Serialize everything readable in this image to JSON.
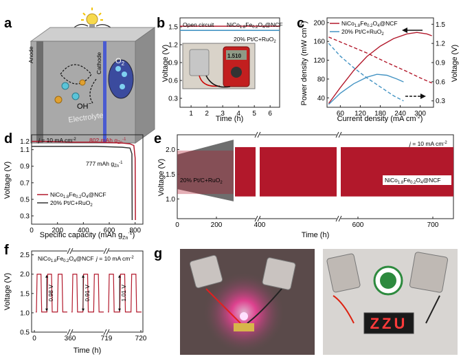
{
  "panels": {
    "a": {
      "letter": "a",
      "labels": {
        "anode": "Anode",
        "cathode": "Cathode",
        "electrolyte": "Electrolyte",
        "hydroxide": "OH",
        "hydroxide_sup": "−",
        "oxygen": "O",
        "oxygen_sub": "2"
      }
    },
    "b": {
      "letter": "b",
      "label_open": "Open circuit",
      "label_ncf": "NiCo",
      "label_ncf_1": "1.8",
      "label_ncf_mid": "Fe",
      "label_ncf_2": "0.2",
      "label_ncf_end": "O",
      "label_ncf_3": "4",
      "label_ncf_tail": "@NCF",
      "label_pt": "20% Pt/C+RuO",
      "label_pt_sub": "2",
      "meter_display": "1.510",
      "ylabel": "Voltage (V)",
      "xlabel": "Time (h)",
      "yticks": [
        "1.5",
        "1.2",
        "0.9",
        "0.6",
        "0.3"
      ],
      "xticks": [
        "1",
        "2",
        "3",
        "4",
        "5",
        "6"
      ]
    },
    "c": {
      "letter": "c",
      "legend_ncf": "NiCo",
      "legend_ncf_1": "1.8",
      "legend_ncf_mid": "Fe",
      "legend_ncf_2": "0.2",
      "legend_ncf_end": "O",
      "legend_ncf_3": "4",
      "legend_ncf_tail": "@NCF",
      "legend_pt": "20% Pt/C+RuO",
      "legend_pt_sub": "2",
      "ylabel_left": "Power density (mW cm",
      "ylabel_left_sup": "-2",
      "ylabel_left_end": ")",
      "ylabel_right": "Voltage (V)",
      "xlabel": "Current density (mA cm",
      "xlabel_sup": "-2",
      "xlabel_end": ")",
      "yticks_left": [
        "200",
        "160",
        "120",
        "80",
        "40"
      ],
      "yticks_right": [
        "1.5",
        "1.2",
        "0.9",
        "0.6",
        "0.3"
      ],
      "xticks": [
        "60",
        "120",
        "180",
        "240",
        "300"
      ]
    },
    "d": {
      "letter": "d",
      "cond": "j",
      "cond_rest": " = 10 mA cm",
      "cond_sup": "-2",
      "cap_ncf": "802 mAh g",
      "cap_ncf_sub": "Zn",
      "cap_ncf_sup": "-1",
      "cap_pt": "777 mAh g",
      "cap_pt_sub": "Zn",
      "cap_pt_sup": "-1",
      "legend_ncf": "NiCo",
      "legend_ncf_1": "1.8",
      "legend_ncf_mid": "Fe",
      "legend_ncf_2": "0.2",
      "legend_ncf_end": "O",
      "legend_ncf_3": "4",
      "legend_ncf_tail": "@NCF",
      "legend_pt": "20% Pt/C+RuO",
      "legend_pt_sub": "2",
      "ylabel": "Voltage (V)",
      "xlabel": "Specific capacity (mAh g",
      "xlabel_sub": "Zn",
      "xlabel_sup": "-1",
      "xlabel_end": ")",
      "yticks": [
        "1.2",
        "1.1",
        "0.9",
        "0.7",
        "0.5",
        "0.3"
      ],
      "xticks": [
        "0",
        "200",
        "400",
        "600",
        "800"
      ]
    },
    "e": {
      "letter": "e",
      "cond": "j",
      "cond_rest": " = 10 mA cm",
      "cond_sup": "-2",
      "label_pt": "20% Pt/C+RuO",
      "label_pt_sub": "2",
      "label_ncf": "NiCo",
      "label_ncf_1": "1.8",
      "label_ncf_mid": "Fe",
      "label_ncf_2": "0.2",
      "label_ncf_end": "O",
      "label_ncf_3": "4",
      "label_ncf_tail": "@NCF",
      "ylabel": "Voltage (V)",
      "xlabel": "Time (h)",
      "yticks": [
        "2.0",
        "1.5",
        "1.0"
      ],
      "xticks": [
        "0",
        "200",
        "400",
        "600",
        "700"
      ]
    },
    "f": {
      "letter": "f",
      "label_ncf": "NiCo",
      "label_ncf_1": "1.8",
      "label_ncf_mid": "Fe",
      "label_ncf_2": "0.2",
      "label_ncf_end": "O",
      "label_ncf_3": "4",
      "label_ncf_tail": "@NCF",
      "cond": "j",
      "cond_rest": " = 10 mA cm",
      "cond_sup": "-2",
      "gap1": "0.98 V",
      "gap2": "0.91 V",
      "gap3": "1.01 V",
      "ylabel": "Voltage (V)",
      "xlabel": "Time (h)",
      "yticks": [
        "2.5",
        "2.0",
        "1.5",
        "1.0",
        "0.5"
      ],
      "xticks": [
        "0",
        "360",
        "719",
        "720"
      ]
    },
    "g": {
      "letter": "g",
      "display_text": "ZZU"
    }
  },
  "chart_data": [
    {
      "panel": "b",
      "type": "line",
      "xlabel": "Time (h)",
      "ylabel": "Voltage (V)",
      "xlim": [
        0.3,
        6.6
      ],
      "ylim": [
        0.15,
        1.65
      ],
      "series": [
        {
          "name": "NiCo1.8Fe0.2O4@NCF",
          "color": "#b2182b",
          "x": [
            0.3,
            6.6
          ],
          "y": [
            1.51,
            1.51
          ]
        },
        {
          "name": "20% Pt/C+RuO2",
          "color": "#4393c3",
          "x": [
            0.3,
            6.6
          ],
          "y": [
            1.44,
            1.44
          ]
        }
      ]
    },
    {
      "panel": "c",
      "type": "line",
      "xlabel": "Current density (mA cm-2)",
      "ylabel": "Power density (mW cm-2)",
      "ylabel_right": "Voltage (V)",
      "xlim": [
        20,
        340
      ],
      "ylim": [
        20,
        210
      ],
      "ylim_right": [
        0.2,
        1.6
      ],
      "series": [
        {
          "name": "NiCo1.8Fe0.2O4@NCF",
          "color": "#b2182b",
          "axis": "left",
          "x": [
            25,
            60,
            100,
            140,
            180,
            220,
            260,
            290,
            320,
            335
          ],
          "y": [
            28,
            62,
            98,
            128,
            150,
            166,
            176,
            179,
            176,
            172
          ]
        },
        {
          "name": "20% Pt/C+RuO2",
          "color": "#4393c3",
          "axis": "left",
          "x": [
            25,
            60,
            100,
            140,
            170,
            200,
            230,
            250
          ],
          "y": [
            26,
            50,
            70,
            84,
            90,
            88,
            80,
            74
          ]
        },
        {
          "name": "NiCo1.8Fe0.2O4@NCF",
          "color": "#b2182b",
          "axis": "right",
          "dash": true,
          "x": [
            25,
            80,
            140,
            200,
            260,
            300,
            335
          ],
          "y": [
            1.3,
            1.18,
            1.05,
            0.9,
            0.76,
            0.66,
            0.58
          ]
        },
        {
          "name": "20% Pt/C+RuO2",
          "color": "#4393c3",
          "axis": "right",
          "dash": true,
          "x": [
            25,
            60,
            100,
            140,
            180,
            220,
            250
          ],
          "y": [
            1.2,
            1.0,
            0.82,
            0.66,
            0.52,
            0.38,
            0.3
          ]
        }
      ]
    },
    {
      "panel": "d",
      "type": "line",
      "xlabel": "Specific capacity (mAh gZn-1)",
      "ylabel": "Voltage (V)",
      "xlim": [
        0,
        860
      ],
      "ylim": [
        0.2,
        1.28
      ],
      "series": [
        {
          "name": "NiCo1.8Fe0.2O4@NCF",
          "color": "#b2182b",
          "x": [
            0,
            100,
            300,
            500,
            700,
            760,
            790,
            800,
            802
          ],
          "y": [
            1.2,
            1.2,
            1.19,
            1.19,
            1.18,
            1.17,
            1.15,
            1.0,
            0.25
          ]
        },
        {
          "name": "20% Pt/C+RuO2",
          "color": "#333333",
          "x": [
            0,
            100,
            300,
            500,
            700,
            760,
            775,
            777
          ],
          "y": [
            1.14,
            1.14,
            1.14,
            1.14,
            1.13,
            1.12,
            1.05,
            0.25
          ]
        }
      ]
    },
    {
      "panel": "e",
      "type": "area",
      "xlabel": "Time (h)",
      "ylabel": "Voltage (V)",
      "ylim": [
        0.6,
        2.3
      ],
      "series": [
        {
          "name": "20% Pt/C+RuO2",
          "color": "#555555",
          "x_range": [
            0,
            320
          ],
          "charge_v": [
            1.9,
            2.2
          ],
          "discharge_v": [
            1.2,
            0.95
          ]
        },
        {
          "name": "NiCo1.8Fe0.2O4@NCF",
          "color": "#b2182b",
          "x_range": [
            320,
            720
          ],
          "charge_v": [
            1.98,
            2.0
          ],
          "discharge_v": [
            1.1,
            1.1
          ]
        }
      ]
    },
    {
      "panel": "f",
      "type": "line",
      "xlabel": "Time (h)",
      "ylabel": "Voltage (V)",
      "ylim": [
        0.5,
        2.6
      ],
      "series": [
        {
          "name": "NiCo1.8Fe0.2O4@NCF",
          "color": "#b2182b",
          "charge_v": 2.0,
          "discharge_v": 1.02,
          "gaps_v": [
            0.98,
            0.91,
            1.01
          ]
        }
      ]
    }
  ]
}
